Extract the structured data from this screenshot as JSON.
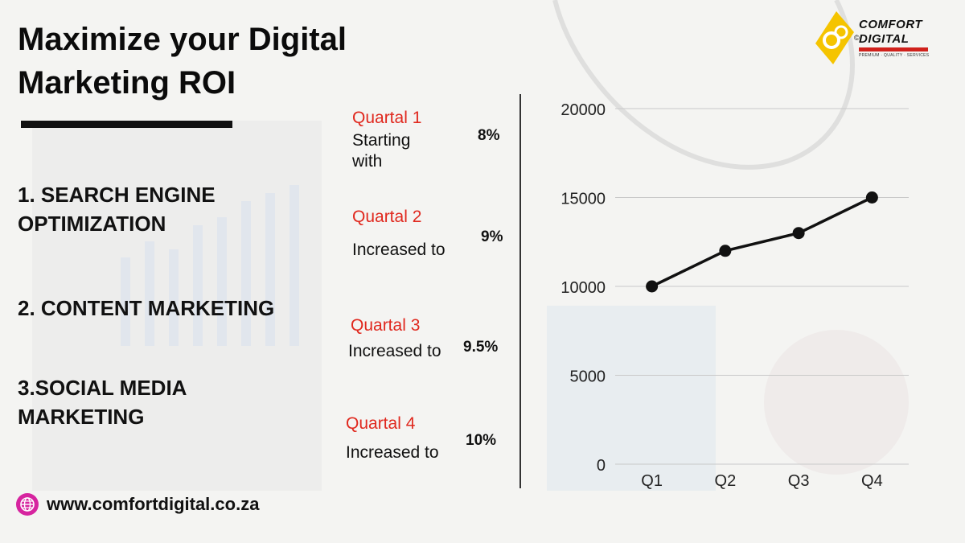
{
  "title": "Maximize your Digital Marketing ROI",
  "items": [
    "1. SEARCH ENGINE OPTIMIZATION",
    "2. CONTENT MARKETING",
    "3.SOCIAL MEDIA MARKETING"
  ],
  "quarters": [
    {
      "label": "Quartal 1",
      "desc": "Starting with",
      "pct": "8%"
    },
    {
      "label": "Quartal 2",
      "desc": "Increased to",
      "pct": "9%"
    },
    {
      "label": "Quartal 3",
      "desc": "Increased to",
      "pct": "9.5%"
    },
    {
      "label": "Quartal 4",
      "desc": "Increased to",
      "pct": "10%"
    }
  ],
  "logo": {
    "line1": "COMFORT",
    "line2": "DIGITAL",
    "reg": "©",
    "tagline": "PREMIUM · QUALITY · SERVICES",
    "icon": "cd-logo-icon"
  },
  "website": {
    "text": "www.comfortdigital.co.za",
    "icon": "globe-icon"
  },
  "colors": {
    "accent_red": "#e0281e",
    "logo_yellow": "#f5c400",
    "globe_magenta": "#d6249f"
  },
  "chart_data": {
    "type": "line",
    "categories": [
      "Q1",
      "Q2",
      "Q3",
      "Q4"
    ],
    "series": [
      {
        "values": [
          10000,
          12000,
          13000,
          15000
        ]
      }
    ],
    "ylim": [
      0,
      20000
    ],
    "yticks": [
      0,
      5000,
      10000,
      15000,
      20000
    ],
    "grid": true,
    "line_color": "#111111"
  }
}
